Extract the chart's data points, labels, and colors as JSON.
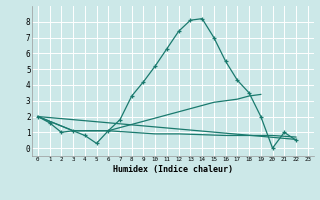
{
  "xlabel": "Humidex (Indice chaleur)",
  "background_color": "#cce8e8",
  "grid_color": "#ffffff",
  "line_color": "#1a7a6e",
  "xlim": [
    -0.5,
    23.5
  ],
  "ylim": [
    -0.5,
    9.0
  ],
  "xticks": [
    0,
    1,
    2,
    3,
    4,
    5,
    6,
    7,
    8,
    9,
    10,
    11,
    12,
    13,
    14,
    15,
    16,
    17,
    18,
    19,
    20,
    21,
    22,
    23
  ],
  "yticks": [
    0,
    1,
    2,
    3,
    4,
    5,
    6,
    7,
    8
  ],
  "series0_x": [
    0,
    1,
    2,
    3,
    4,
    5,
    6,
    7,
    8,
    9,
    10,
    11,
    12,
    13,
    14,
    15,
    16,
    17,
    18,
    19,
    20,
    21,
    22
  ],
  "series0_y": [
    2.0,
    1.6,
    1.0,
    1.1,
    0.8,
    0.3,
    1.1,
    1.8,
    3.3,
    4.2,
    5.2,
    6.3,
    7.4,
    8.1,
    8.2,
    7.0,
    5.5,
    4.3,
    3.5,
    2.0,
    0.0,
    1.0,
    0.5
  ],
  "series1_x": [
    0,
    3,
    6,
    7,
    8,
    9,
    10,
    11,
    12,
    13,
    14,
    15,
    16,
    17,
    18,
    19
  ],
  "series1_y": [
    2.0,
    1.1,
    1.1,
    1.3,
    1.5,
    1.7,
    1.9,
    2.1,
    2.3,
    2.5,
    2.7,
    2.9,
    3.0,
    3.1,
    3.3,
    3.4
  ],
  "series2_x": [
    0,
    3,
    6,
    8,
    10,
    12,
    14,
    16,
    18,
    20,
    21,
    22
  ],
  "series2_y": [
    2.0,
    1.1,
    1.1,
    1.0,
    0.9,
    0.9,
    0.85,
    0.8,
    0.8,
    0.8,
    0.75,
    0.7
  ],
  "series3_x": [
    0,
    22
  ],
  "series3_y": [
    2.0,
    0.55
  ]
}
